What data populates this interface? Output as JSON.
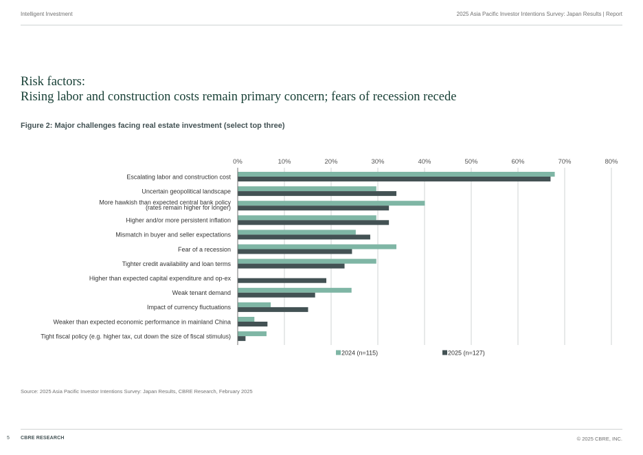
{
  "header": {
    "left": "Intelligent Investment",
    "right": "2025 Asia Pacific Investor Intentions Survey: Japan Results | Report"
  },
  "title": {
    "line1": "Risk factors:",
    "line2": "Rising labor and construction costs remain primary concern; fears of recession recede"
  },
  "figure_title": "Figure 2: Major challenges facing real estate investment (select top three)",
  "colors": {
    "s2024": "#7fb6a5",
    "s2025": "#435254",
    "grid": "#cfd3d3",
    "axis": "#707070",
    "text": "#333333"
  },
  "chart_data": {
    "type": "bar",
    "orientation": "horizontal",
    "title": "Figure 2: Major challenges facing real estate investment (select top three)",
    "xlabel": "",
    "ylabel": "",
    "xlim": [
      0,
      80
    ],
    "xticks": [
      "0%",
      "10%",
      "20%",
      "30%",
      "40%",
      "50%",
      "60%",
      "70%",
      "80%"
    ],
    "grid": true,
    "legend_position": "bottom",
    "categories": [
      [
        "Escalating labor and construction cost"
      ],
      [
        "Uncertain geopolitical landscape"
      ],
      [
        "More hawkish than expected central bank policy",
        "(rates remain higher for longer)"
      ],
      [
        "Higher and/or more persistent inflation"
      ],
      [
        "Mismatch in buyer and seller expectations"
      ],
      [
        "Fear of a recession"
      ],
      [
        "Tighter credit availability and loan terms"
      ],
      [
        "Higher than expected capital expenditure and op-ex"
      ],
      [
        "Weak tenant demand"
      ],
      [
        "Impact of currency fluctuations"
      ],
      [
        "Weaker than expected economic performance in mainland China"
      ],
      [
        "Tight fiscal policy (e.g. higher tax, cut down the size of fiscal stimulus)"
      ]
    ],
    "series": [
      {
        "name": "2024 (n=115)",
        "values": [
          67.8,
          29.6,
          40.0,
          29.6,
          25.2,
          33.9,
          29.6,
          0,
          24.3,
          7.0,
          3.5,
          6.1
        ]
      },
      {
        "name": "2025 (n=127)",
        "values": [
          66.9,
          33.9,
          32.3,
          32.3,
          28.3,
          24.4,
          22.8,
          18.9,
          16.5,
          15.0,
          6.3,
          1.6
        ]
      }
    ]
  },
  "source": "Source: 2025 Asia Pacific Investor Intentions Survey: Japan Results, CBRE Research, February 2025",
  "footer": {
    "page_number": "5",
    "left": "CBRE RESEARCH",
    "right": "© 2025 CBRE, INC."
  }
}
